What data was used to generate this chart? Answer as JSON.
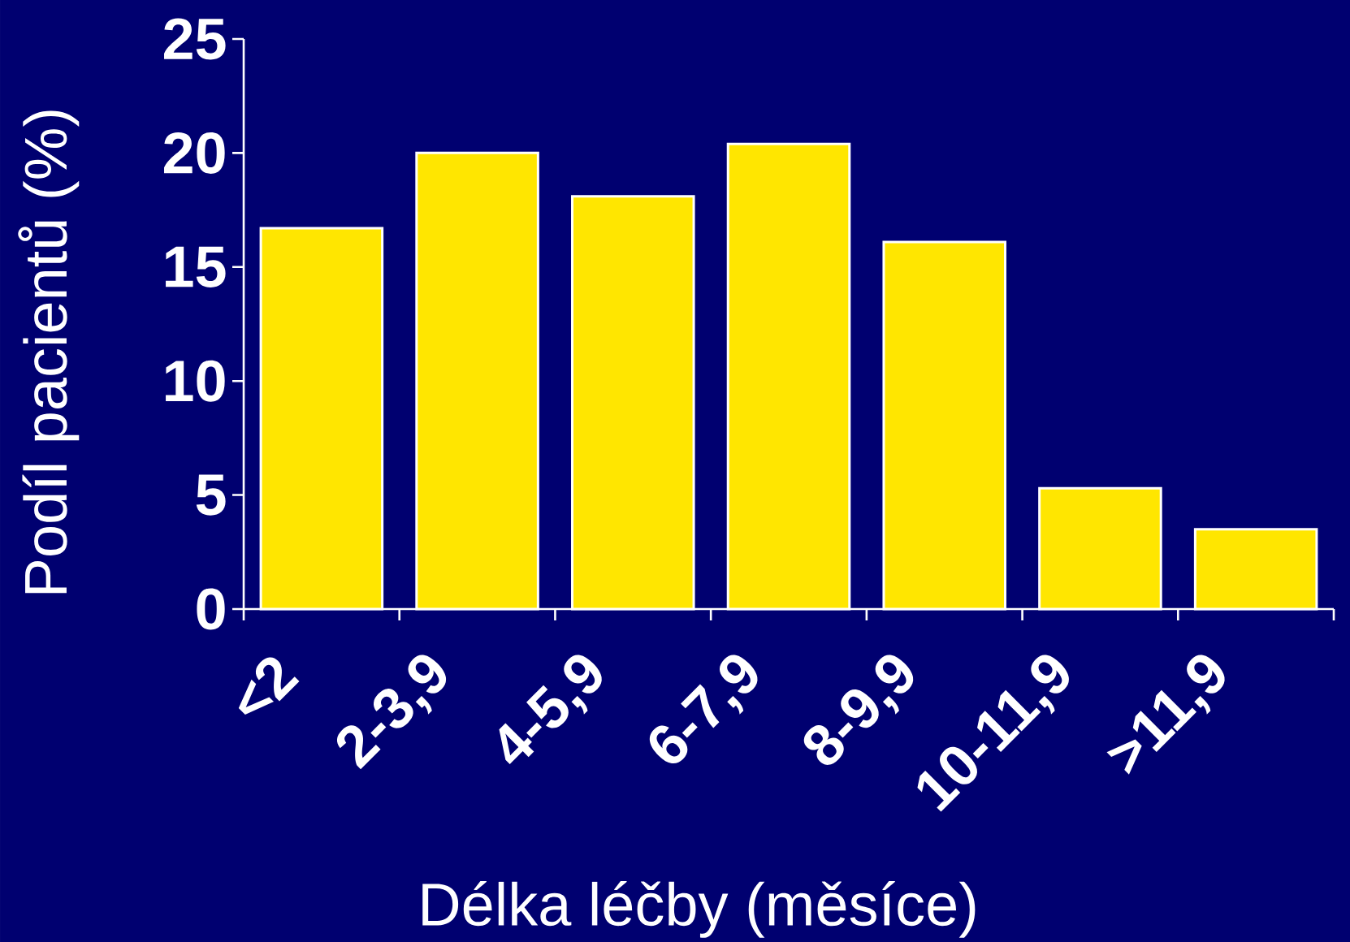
{
  "chart_data": {
    "type": "bar",
    "xlabel": "Délka léčby (měsíce)",
    "ylabel": "Podíl pacientů (%)",
    "categories": [
      "<2",
      "2-3,9",
      "4-5,9",
      "6-7,9",
      "8-9,9",
      "10-11,9",
      ">11,9"
    ],
    "values": [
      16.7,
      20.0,
      18.1,
      20.4,
      16.1,
      5.3,
      3.5
    ],
    "color": "#ffe600",
    "ylim": [
      0,
      25
    ],
    "yticks": [
      0,
      5,
      10,
      15,
      20,
      25
    ]
  }
}
